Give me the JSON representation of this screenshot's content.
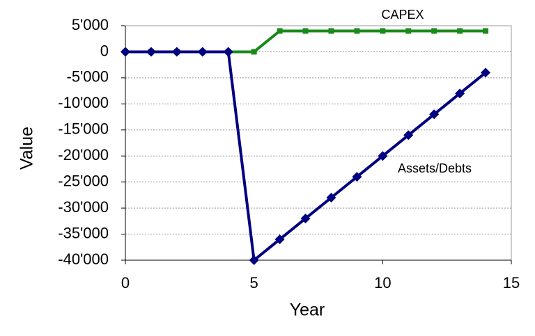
{
  "chart_data": {
    "type": "line",
    "x_label": "Year",
    "y_label": "Value",
    "x": [
      0,
      1,
      2,
      3,
      4,
      5,
      6,
      7,
      8,
      9,
      10,
      11,
      12,
      13,
      14
    ],
    "series": [
      {
        "name": "CAPEX",
        "color": "#1a8a1a",
        "marker": "square",
        "values": [
          0,
          0,
          0,
          0,
          0,
          0,
          4000,
          4000,
          4000,
          4000,
          4000,
          4000,
          4000,
          4000,
          4000
        ]
      },
      {
        "name": "Assets/Debts",
        "color": "#000080",
        "marker": "diamond",
        "values": [
          0,
          0,
          0,
          0,
          0,
          -40000,
          -36000,
          -32000,
          -28000,
          -24000,
          -20000,
          -16000,
          -12000,
          -8000,
          -4000
        ]
      }
    ],
    "xlim": [
      0,
      15
    ],
    "xticks": [
      0,
      5,
      10,
      15
    ],
    "ylim": [
      -40000,
      5000
    ],
    "yticks": [
      {
        "value": 5000,
        "label": "5'000"
      },
      0,
      {
        "value": -5000,
        "label": "-5'000"
      },
      {
        "value": -10000,
        "label": "-10'000"
      },
      {
        "value": -15000,
        "label": "-15'000"
      },
      {
        "value": -20000,
        "label": "-20'000"
      },
      {
        "value": -25000,
        "label": "-25'000"
      },
      {
        "value": -30000,
        "label": "-30'000"
      },
      {
        "value": -35000,
        "label": "-35'000"
      },
      {
        "value": -40000,
        "label": "-40'000"
      }
    ],
    "grid": true
  }
}
